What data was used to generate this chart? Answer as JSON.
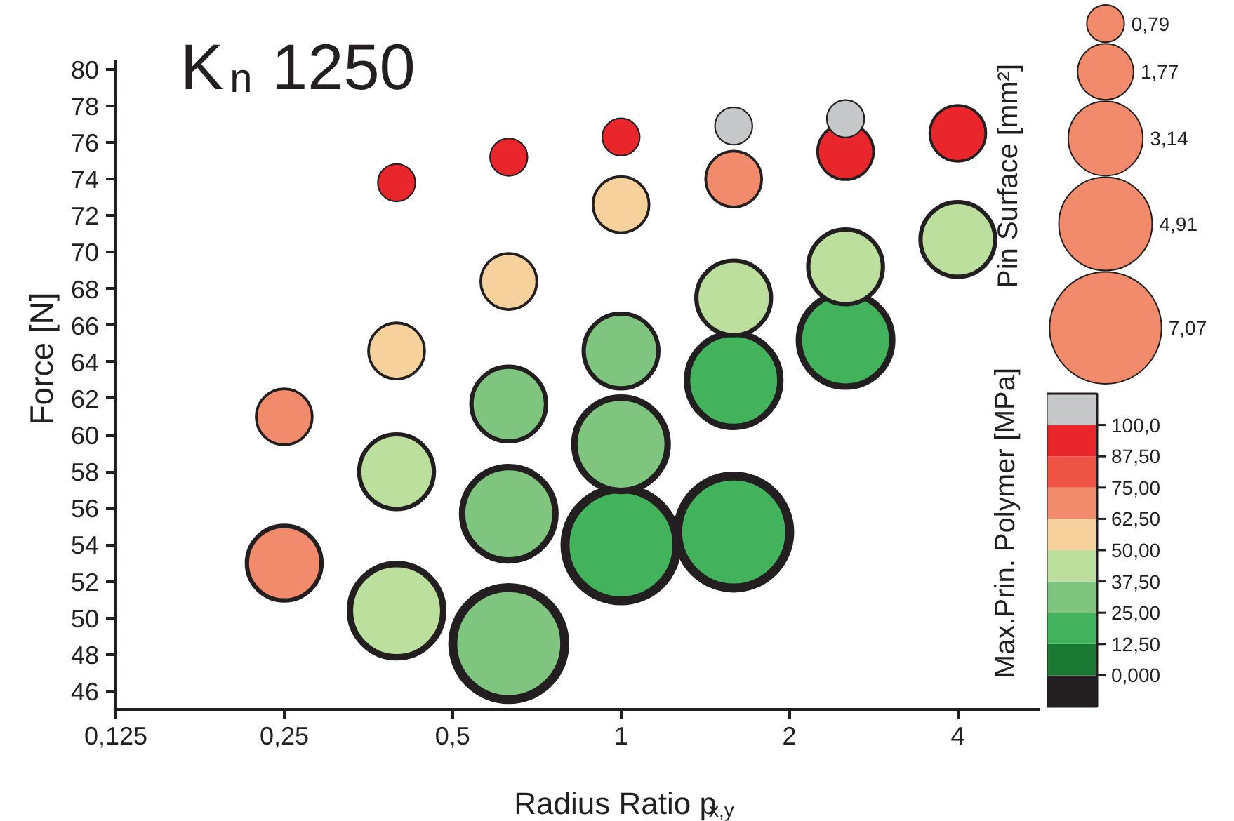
{
  "chart_data": {
    "type": "bubble",
    "title": "K$_{n}$ 1250",
    "xlabel": "Radius Ratio p$_{x,y}$",
    "ylabel": "Force [N]",
    "legend_title": "Pin Surface [mm²]",
    "clabel": "Max.Prin. Polymer [MPa]",
    "log": "x",
    "xlim": [
      0.125,
      5.6
    ],
    "xticks": [
      {
        "value": 0.125,
        "label": "0,125"
      },
      {
        "value": 0.25,
        "label": "0,25"
      },
      {
        "value": 0.5,
        "label": "0,5"
      },
      1,
      2,
      4
    ],
    "ylim": [
      45,
      80.5
    ],
    "yticks": [
      46,
      48,
      50,
      52,
      54,
      56,
      58,
      60,
      62,
      64,
      66,
      68,
      70,
      72,
      74,
      76,
      78,
      80
    ],
    "size_legend": [
      {
        "value": 0.79,
        "label": "0,79"
      },
      {
        "value": 1.77,
        "label": "1,77"
      },
      {
        "value": 3.14,
        "label": "3,14"
      },
      {
        "value": 4.91,
        "label": "4,91"
      },
      {
        "value": 7.07,
        "label": "7,07"
      }
    ],
    "clim": [
      -12.5,
      112.5
    ],
    "cticks": [
      {
        "value": 0,
        "label": "0,000"
      },
      {
        "value": 12.5,
        "label": "12,50"
      },
      {
        "value": 25,
        "label": "25,00"
      },
      {
        "value": 37.5,
        "label": "37,50"
      },
      {
        "value": 50,
        "label": "50,00"
      },
      {
        "value": 62.5,
        "label": "62,50"
      },
      {
        "value": 75,
        "label": "75,00"
      },
      {
        "value": 87.5,
        "label": "87,50"
      },
      {
        "value": 100,
        "label": "100,0"
      }
    ],
    "x": [
      0.25,
      0.25,
      0.397,
      0.397,
      0.397,
      0.397,
      0.63,
      0.63,
      0.63,
      0.63,
      0.63,
      1,
      1,
      1,
      1,
      1,
      1.59,
      1.59,
      1.59,
      1.59,
      1.59,
      2.52,
      2.52,
      2.52,
      2.52,
      4,
      4
    ],
    "values": [
      61.0,
      53.0,
      73.8,
      64.6,
      58.0,
      50.4,
      75.2,
      68.4,
      61.7,
      55.7,
      48.6,
      76.3,
      72.6,
      64.6,
      59.5,
      54.0,
      76.9,
      74.0,
      67.5,
      63.0,
      54.7,
      77.3,
      75.5,
      69.2,
      65.2,
      76.5,
      70.7
    ],
    "sizes": [
      1.77,
      3.14,
      0.79,
      1.77,
      3.14,
      4.91,
      0.79,
      1.77,
      3.14,
      4.91,
      7.07,
      0.79,
      1.77,
      3.14,
      4.91,
      7.07,
      0.79,
      1.77,
      3.14,
      4.91,
      7.07,
      0.79,
      1.77,
      3.14,
      4.91,
      1.77,
      3.14
    ],
    "cvalues": [
      68.75,
      68.75,
      93.75,
      56.25,
      43.75,
      43.75,
      93.75,
      56.25,
      31.25,
      31.25,
      31.25,
      93.75,
      56.25,
      31.25,
      31.25,
      18.75,
      106.25,
      68.75,
      43.75,
      18.75,
      18.75,
      106.25,
      93.75,
      43.75,
      18.75,
      93.75,
      43.75
    ]
  }
}
